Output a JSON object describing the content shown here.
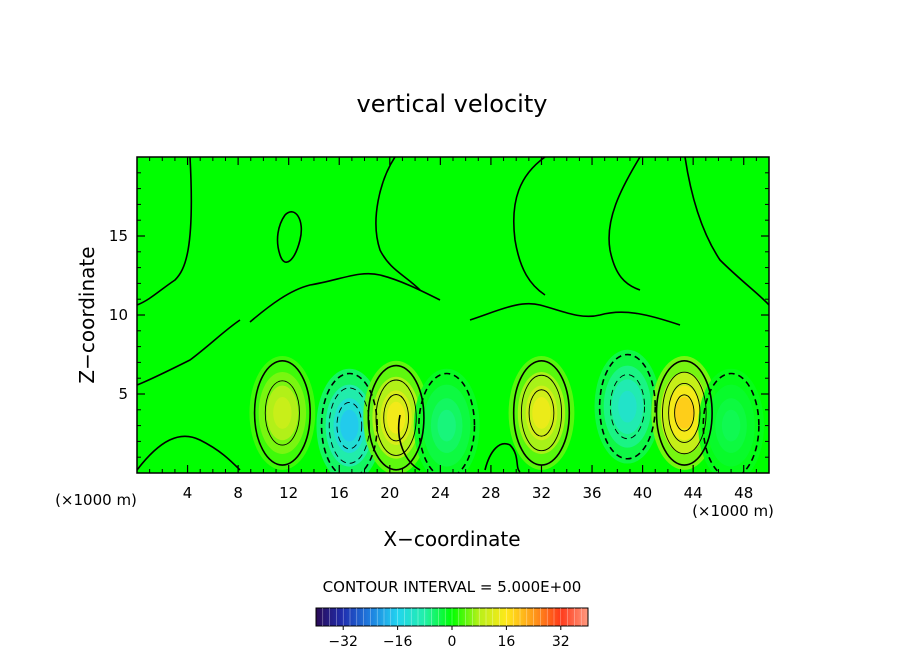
{
  "chart_data": {
    "type": "heatmap",
    "title": "vertical velocity",
    "xlabel": "X−coordinate",
    "ylabel": "Z−coordinate",
    "x_unit_left": "(×1000 m)",
    "x_unit_right": "(×1000 m)",
    "x_ticks": [
      4,
      8,
      12,
      16,
      20,
      24,
      28,
      32,
      36,
      40,
      44,
      48
    ],
    "y_ticks": [
      5,
      10,
      15
    ],
    "xlim": [
      0,
      50
    ],
    "ylim": [
      0,
      20
    ],
    "contour_interval_label": "CONTOUR INTERVAL = 5.000E+00",
    "colorbar": {
      "range": [
        -40,
        40
      ],
      "ticks": [
        -32,
        -16,
        0,
        16,
        32
      ],
      "tick_labels": [
        "−32",
        "−16",
        "0",
        "16",
        "32"
      ],
      "colors": [
        "#2a0a55",
        "#1f2fb0",
        "#1f7fe0",
        "#22d4f0",
        "#22f0a8",
        "#00ff00",
        "#b8f01a",
        "#ffe81a",
        "#ff9a1a",
        "#ff3a1a",
        "#ff9a80"
      ]
    },
    "features": [
      {
        "x": 11.5,
        "z": 3.8,
        "value": 10,
        "sign": "positive"
      },
      {
        "x": 16.8,
        "z": 3.0,
        "value": -17,
        "sign": "negative"
      },
      {
        "x": 20.5,
        "z": 3.5,
        "value": 15,
        "sign": "positive"
      },
      {
        "x": 24.5,
        "z": 3.0,
        "value": -6,
        "sign": "negative"
      },
      {
        "x": 32.0,
        "z": 3.8,
        "value": 14,
        "sign": "positive"
      },
      {
        "x": 38.8,
        "z": 4.2,
        "value": -12,
        "sign": "negative"
      },
      {
        "x": 43.3,
        "z": 3.8,
        "value": 19,
        "sign": "positive"
      },
      {
        "x": 47.0,
        "z": 3.0,
        "value": -4,
        "sign": "negative"
      }
    ]
  }
}
